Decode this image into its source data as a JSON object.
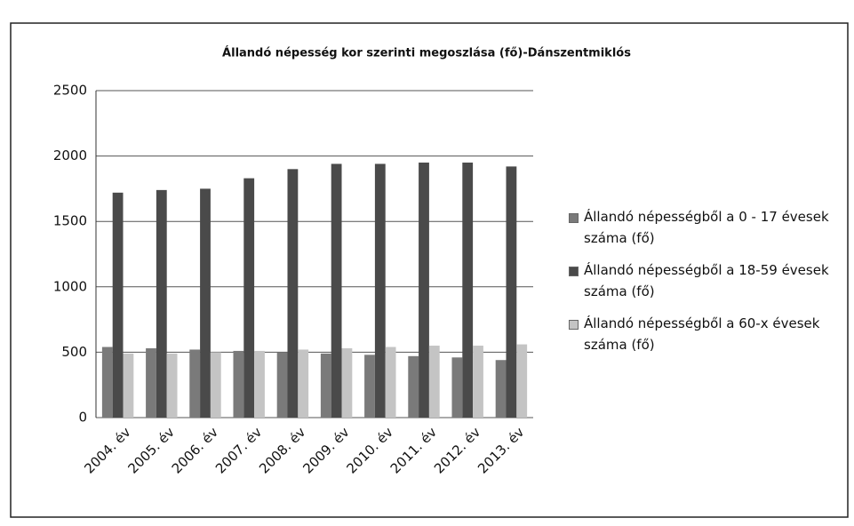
{
  "chart_data": {
    "type": "bar",
    "title": "Állandó népesség kor szerinti megoszlása (fő)-Dánszentmiklós",
    "categories": [
      "2004. év",
      "2005. év",
      "2006. év",
      "2007. év",
      "2008. év",
      "2009. év",
      "2010. év",
      "2011. év",
      "2012. év",
      "2013. év"
    ],
    "series": [
      {
        "name": "Állandó népességből a 0 - 17 évesek száma (fő)",
        "color": "#7a7a7a",
        "values": [
          540,
          530,
          520,
          510,
          500,
          490,
          480,
          470,
          460,
          440
        ]
      },
      {
        "name": "Állandó népességből a 18-59 évesek száma (fő)",
        "color": "#4a4a4a",
        "values": [
          1720,
          1740,
          1750,
          1830,
          1900,
          1940,
          1940,
          1950,
          1950,
          1920
        ]
      },
      {
        "name": "Állandó népességből a 60-x évesek száma (fő)",
        "color": "#c4c4c4",
        "values": [
          490,
          490,
          500,
          510,
          520,
          530,
          540,
          550,
          550,
          560
        ]
      }
    ],
    "ylim": [
      0,
      2500
    ],
    "yticks": [
      0,
      500,
      1000,
      1500,
      2000,
      2500
    ],
    "grid": true,
    "legend": "right"
  }
}
